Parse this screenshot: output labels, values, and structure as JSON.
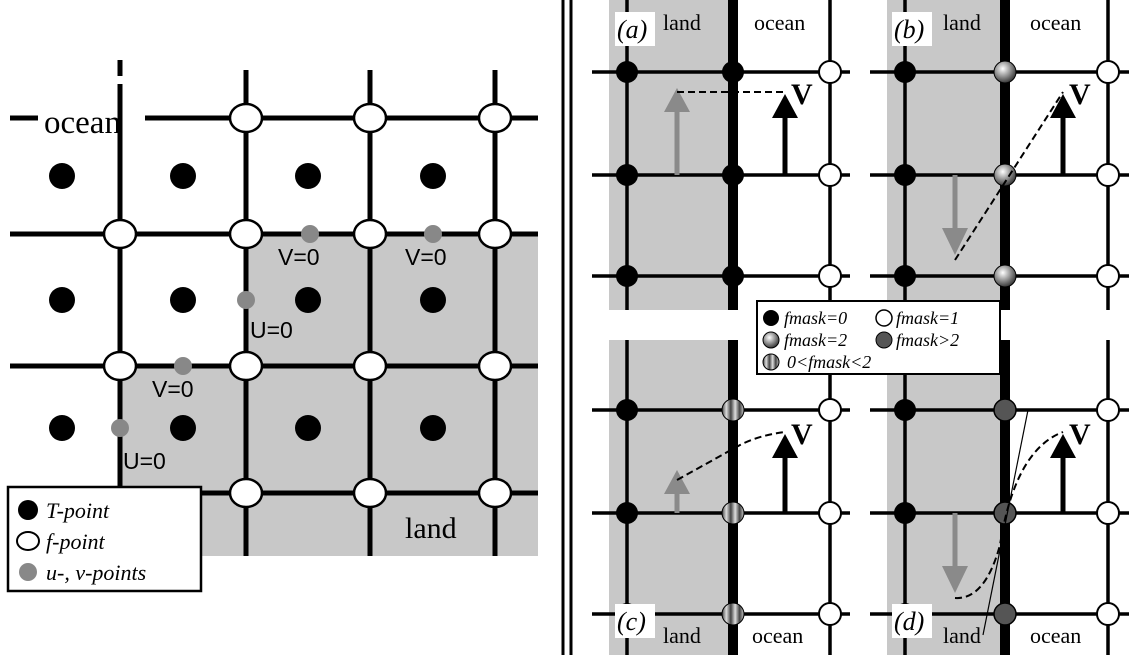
{
  "colors": {
    "land": "#c8c8c8",
    "grid": "#000000",
    "t_point": "#000000",
    "f_point": "#ffffff",
    "uv_point": "#888888",
    "arrow_gray": "#8a8a8a",
    "fmask_gt2": "#555555"
  },
  "left_panel": {
    "label_ocean": "ocean",
    "label_land": "land",
    "boundary_labels": [
      "V=0",
      "V=0",
      "U=0",
      "V=0",
      "U=0"
    ],
    "legend": {
      "t_point": "T-point",
      "f_point": "f-point",
      "uv_point": "u-, v-points"
    }
  },
  "right_panel": {
    "panels": [
      {
        "id": "a",
        "letter": "(a)",
        "land": "land",
        "ocean": "ocean",
        "fmask": "0"
      },
      {
        "id": "b",
        "letter": "(b)",
        "land": "land",
        "ocean": "ocean",
        "fmask": "2"
      },
      {
        "id": "c",
        "letter": "(c)",
        "land": "land",
        "ocean": "ocean",
        "fmask": "0<fmask<2"
      },
      {
        "id": "d",
        "letter": "(d)",
        "land": "land",
        "ocean": "ocean",
        "fmask": ">2"
      }
    ],
    "velocity_label": "V",
    "legend": {
      "fmask0": "fmask=0",
      "fmask1": "fmask=1",
      "fmask2": "fmask=2",
      "fmask_gt2": "fmask>2",
      "fmask_mid": "0<fmask<2"
    }
  }
}
